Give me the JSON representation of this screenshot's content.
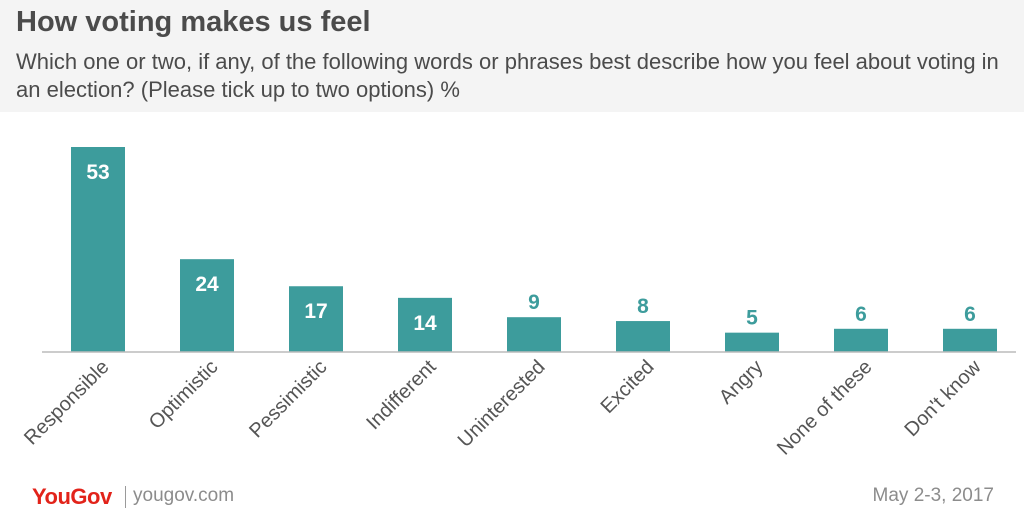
{
  "header": {
    "title": "How voting makes us feel",
    "subtitle": "Which one or two, if any, of the following words or phrases best describe how you feel about voting in an election? (Please tick up to two options) %"
  },
  "chart_data": {
    "type": "bar",
    "categories": [
      "Responsible",
      "Optimistic",
      "Pessimistic",
      "Indifferent",
      "Uninterested",
      "Excited",
      "Angry",
      "None of these",
      "Don't know"
    ],
    "values": [
      53,
      24,
      17,
      14,
      9,
      8,
      5,
      6,
      6
    ],
    "ylim": [
      0,
      53
    ],
    "grid": false,
    "legend": "none",
    "bar_color": "#3d9c9c",
    "label_color_inside": "#ffffff",
    "label_color_outside": "#3d9c9c"
  },
  "footer": {
    "brand": "YouGov",
    "site": "yougov.com",
    "date": "May 2-3, 2017"
  }
}
